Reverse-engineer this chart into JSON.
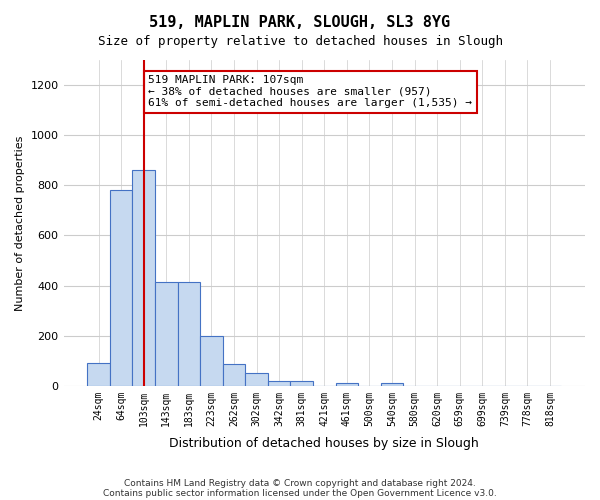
{
  "title": "519, MAPLIN PARK, SLOUGH, SL3 8YG",
  "subtitle": "Size of property relative to detached houses in Slough",
  "xlabel": "Distribution of detached houses by size in Slough",
  "ylabel": "Number of detached properties",
  "bin_labels": [
    "24sqm",
    "64sqm",
    "103sqm",
    "143sqm",
    "183sqm",
    "223sqm",
    "262sqm",
    "302sqm",
    "342sqm",
    "381sqm",
    "421sqm",
    "461sqm",
    "500sqm",
    "540sqm",
    "580sqm",
    "620sqm",
    "659sqm",
    "699sqm",
    "739sqm",
    "778sqm",
    "818sqm"
  ],
  "bar_values": [
    90,
    780,
    860,
    415,
    415,
    200,
    85,
    50,
    20,
    20,
    0,
    10,
    0,
    10,
    0,
    0,
    0,
    0,
    0,
    0,
    0
  ],
  "bar_color": "#c6d9f0",
  "bar_edge_color": "#4472c4",
  "vline_x_bin": 2,
  "vline_color": "#cc0000",
  "annotation_text": "519 MAPLIN PARK: 107sqm\n← 38% of detached houses are smaller (957)\n61% of semi-detached houses are larger (1,535) →",
  "annotation_box_color": "#ffffff",
  "annotation_box_edge": "#cc0000",
  "ylim": [
    0,
    1300
  ],
  "yticks": [
    0,
    200,
    400,
    600,
    800,
    1000,
    1200
  ],
  "footer_line1": "Contains HM Land Registry data © Crown copyright and database right 2024.",
  "footer_line2": "Contains public sector information licensed under the Open Government Licence v3.0.",
  "bg_color": "#ffffff",
  "grid_color": "#cccccc"
}
